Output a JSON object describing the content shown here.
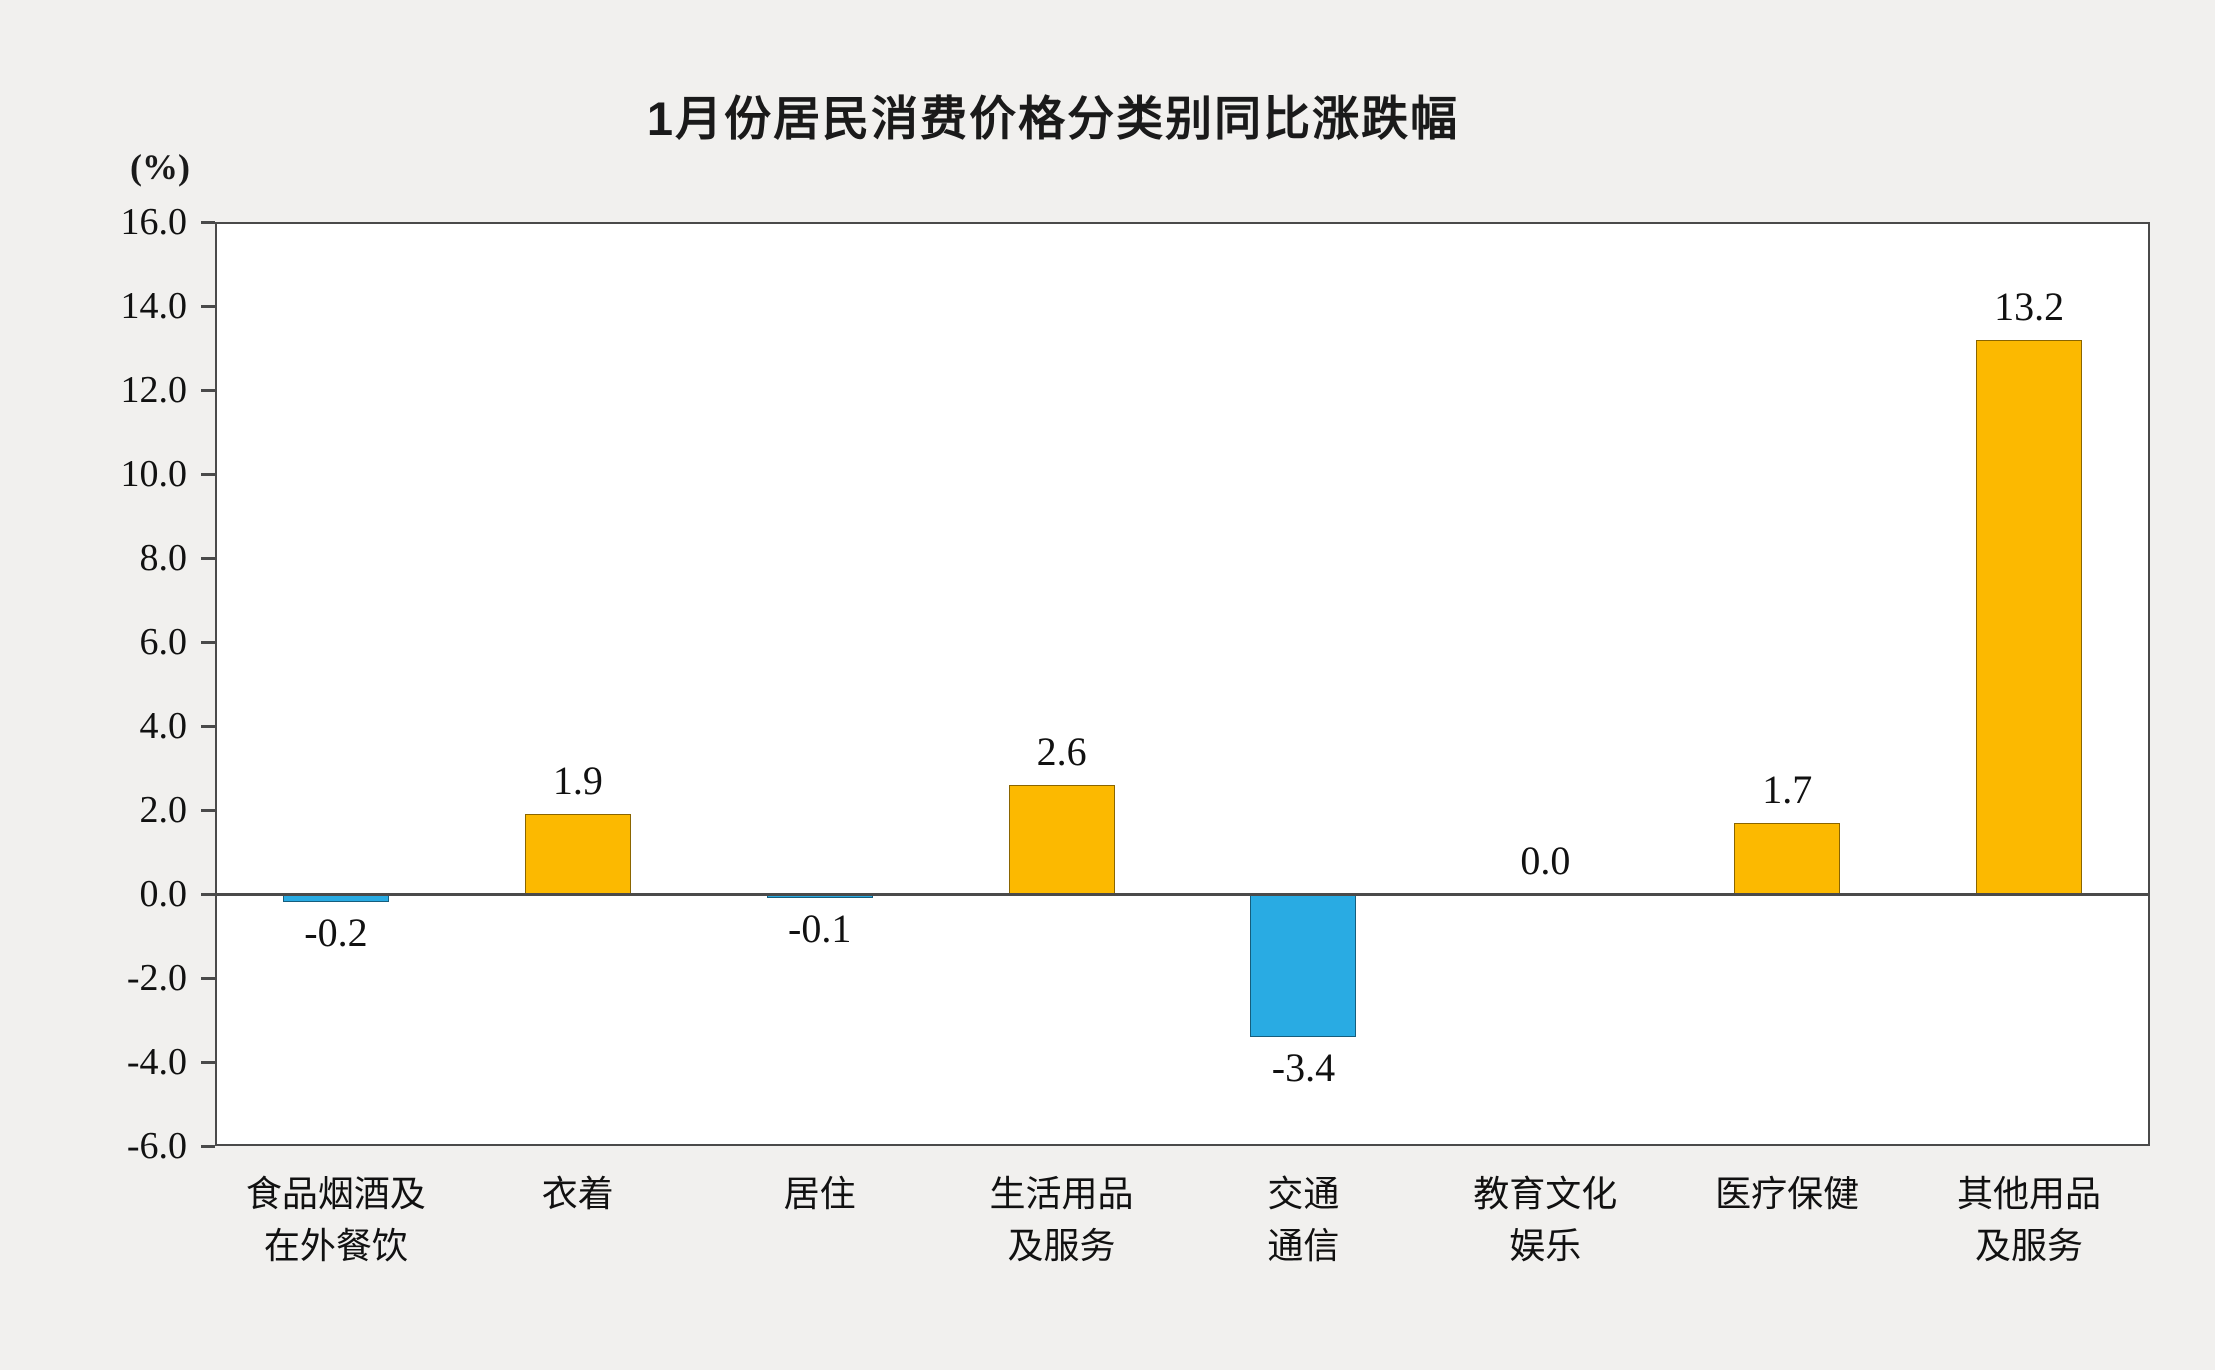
{
  "chart_data": {
    "type": "bar",
    "title": "1月份居民消费价格分类别同比涨跌幅",
    "unit_label": "(%)",
    "categories": [
      "食品烟酒及\n在外餐饮",
      "衣着",
      "居住",
      "生活用品\n及服务",
      "交通\n通信",
      "教育文化\n娱乐",
      "医疗保健",
      "其他用品\n及服务"
    ],
    "values": [
      -0.2,
      1.9,
      -0.1,
      2.6,
      -3.4,
      0.0,
      1.7,
      13.2
    ],
    "value_labels": [
      "-0.2",
      "1.9",
      "-0.1",
      "2.6",
      "-3.4",
      "0.0",
      "1.7",
      "13.2"
    ],
    "xlabel": "",
    "ylabel": "(%)",
    "ylim": [
      -6.0,
      16.0
    ],
    "ytick_step": 2.0,
    "ytick_labels": [
      "16.0",
      "14.0",
      "12.0",
      "10.0",
      "8.0",
      "6.0",
      "4.0",
      "2.0",
      "0.0",
      "-2.0",
      "-4.0",
      "-6.0"
    ],
    "grid": false,
    "legend": false,
    "colors": {
      "positive": "#fcb900",
      "negative": "#29abe3",
      "axis": "#4a4a4a",
      "plot_background": "#ffffff",
      "page_background": "#f1f0ee"
    }
  }
}
